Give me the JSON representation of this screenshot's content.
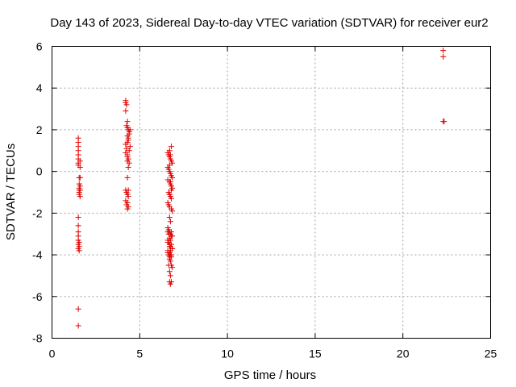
{
  "chart_data": {
    "type": "scatter",
    "title": "Day 143 of 2023, Sidereal Day-to-day VTEC variation (SDTVAR) for receiver eur2",
    "xlabel": "GPS time / hours",
    "ylabel": "SDTVAR / TECUs",
    "xlim": [
      0,
      25
    ],
    "ylim": [
      -8,
      6
    ],
    "xticks": [
      0,
      5,
      10,
      15,
      20,
      25
    ],
    "yticks": [
      -8,
      -6,
      -4,
      -2,
      0,
      2,
      4,
      6
    ],
    "grid": true,
    "marker": "+",
    "color": "#e00000",
    "series": [
      {
        "name": "eur2",
        "x": [
          1.5,
          1.5,
          1.5,
          1.5,
          1.5,
          1.5,
          1.5,
          1.5,
          1.55,
          1.55,
          1.55,
          1.55,
          1.55,
          1.55,
          1.6,
          1.6,
          1.6,
          1.6,
          1.6,
          1.5,
          1.5,
          1.5,
          1.5,
          1.5,
          1.5,
          1.5,
          1.55,
          1.55,
          1.55,
          1.6,
          1.5,
          1.5,
          4.2,
          4.2,
          4.25,
          4.2,
          4.3,
          4.25,
          4.3,
          4.35,
          4.4,
          4.45,
          4.3,
          4.35,
          4.2,
          4.25,
          4.4,
          4.2,
          4.3,
          4.35,
          4.3,
          4.4,
          4.35,
          4.45,
          4.3,
          4.35,
          4.4,
          4.3,
          4.2,
          4.25,
          4.3,
          4.35,
          4.2,
          4.3,
          4.25,
          4.35,
          4.3,
          4.3,
          4.35,
          6.6,
          6.65,
          6.7,
          6.75,
          6.8,
          6.85,
          6.6,
          6.65,
          6.7,
          6.75,
          6.8,
          6.85,
          6.6,
          6.7,
          6.75,
          6.8,
          6.85,
          6.65,
          6.7,
          6.75,
          6.8,
          6.6,
          6.65,
          6.7,
          6.8,
          6.85,
          6.7,
          6.75,
          6.6,
          6.65,
          6.7,
          6.75,
          6.8,
          6.6,
          6.65,
          6.7,
          6.75,
          6.85,
          6.6,
          6.7,
          6.75,
          6.8,
          6.7,
          6.75,
          6.8,
          6.85,
          6.6,
          6.65,
          6.7,
          6.75,
          6.8,
          6.85,
          6.6,
          6.65,
          6.7,
          6.75,
          6.8,
          6.85,
          6.6,
          6.7,
          6.75,
          6.8,
          6.65,
          6.7,
          6.75,
          6.8,
          6.7,
          6.75,
          6.8,
          6.7,
          6.75,
          6.7,
          6.75,
          6.8,
          6.7,
          22.3,
          22.3,
          22.3,
          22.35
        ],
        "y": [
          1.6,
          1.4,
          1.2,
          1.0,
          0.8,
          0.6,
          0.4,
          0.3,
          -0.3,
          -0.6,
          -0.8,
          -0.9,
          -1.0,
          -1.1,
          -1.2,
          -0.9,
          -0.7,
          0.5,
          0.2,
          -2.2,
          -2.6,
          -2.9,
          -3.1,
          -3.3,
          -3.5,
          -3.7,
          -3.6,
          -3.4,
          -3.8,
          -0.3,
          -6.6,
          -7.4,
          3.4,
          3.3,
          3.2,
          2.9,
          2.4,
          2.2,
          2.1,
          2.0,
          1.9,
          2.0,
          1.7,
          1.5,
          1.3,
          1.1,
          1.0,
          0.9,
          0.8,
          0.6,
          0.5,
          0.4,
          0.2,
          1.2,
          1.4,
          1.6,
          1.8,
          0.7,
          -0.9,
          -1.0,
          -1.1,
          -1.2,
          -1.4,
          -1.5,
          -1.6,
          -1.7,
          -1.8,
          -0.3,
          -0.9,
          0.9,
          0.8,
          0.7,
          0.6,
          0.5,
          0.4,
          0.2,
          0.1,
          0.0,
          -0.1,
          -0.2,
          -0.3,
          -0.4,
          -0.5,
          -0.6,
          -0.7,
          -0.8,
          -1.0,
          -1.1,
          -1.2,
          -1.3,
          -1.5,
          -1.6,
          -1.7,
          -1.8,
          -1.9,
          -2.2,
          -2.4,
          -2.7,
          -2.8,
          -2.9,
          -3.0,
          -3.1,
          -3.3,
          -3.4,
          -3.5,
          -3.6,
          -3.7,
          -3.8,
          -3.9,
          -4.0,
          -4.1,
          -4.2,
          -4.3,
          -4.5,
          -4.6,
          -2.9,
          -3.0,
          -3.2,
          -3.3,
          -3.5,
          -3.7,
          -3.9,
          -4.0,
          -4.1,
          -4.0,
          -2.9,
          -3.1,
          -3.4,
          -3.6,
          -3.8,
          -4.0,
          -4.5,
          -4.8,
          -5.0,
          -5.3,
          -5.3,
          -5.4,
          1.2,
          1.0,
          0.8,
          0.3,
          -0.5,
          -0.9,
          -1.1,
          5.8,
          5.5,
          2.4,
          2.4
        ]
      }
    ]
  }
}
